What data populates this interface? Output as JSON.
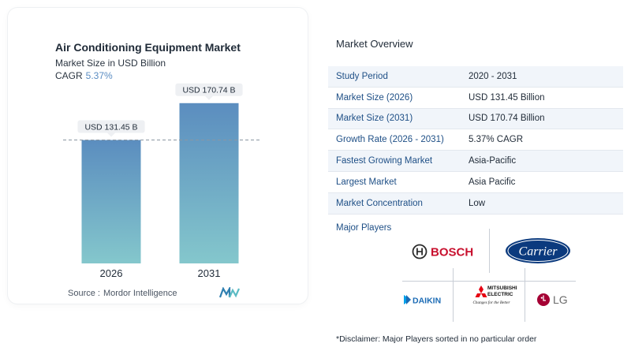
{
  "chart": {
    "title": "Air Conditioning Equipment Market",
    "subtitle": "Market Size in USD Billion",
    "cagr_label": "CAGR",
    "cagr_value": "5.37%",
    "source_label": "Source :",
    "source_value": "Mordor Intelligence"
  },
  "chart_data": {
    "type": "bar",
    "categories": [
      "2026",
      "2031"
    ],
    "values": [
      131.45,
      170.74
    ],
    "data_labels": [
      "USD 131.45 B",
      "USD 170.74 B"
    ],
    "title": "Air Conditioning Equipment Market",
    "subtitle": "Market Size in USD Billion",
    "ylim": [
      0,
      180
    ],
    "grid": false,
    "reference_line_value": 131.45,
    "colors": {
      "bar_top": "#5b8dbf",
      "bar_bottom": "#84c7cc",
      "ref_line": "#8a96a3"
    }
  },
  "overview": {
    "title": "Market Overview",
    "rows": [
      {
        "key": "Study Period",
        "value": "2020 - 2031"
      },
      {
        "key": "Market Size (2026)",
        "value": "USD 131.45 Billion"
      },
      {
        "key": "Market Size (2031)",
        "value": "USD 170.74 Billion"
      },
      {
        "key": "Growth Rate (2026 - 2031)",
        "value": "5.37% CAGR"
      },
      {
        "key": "Fastest Growing Market",
        "value": "Asia-Pacific"
      },
      {
        "key": "Largest Market",
        "value": "Asia Pacific"
      },
      {
        "key": "Market Concentration",
        "value": "Low"
      }
    ]
  },
  "players": {
    "title": "Major Players",
    "bosch": "BOSCH",
    "carrier": "Carrier",
    "daikin": "DAIKIN",
    "mitsubishi_1": "MITSUBISHI",
    "mitsubishi_2": "ELECTRIC",
    "mitsubishi_3": "Changes for the Better",
    "lg": "LG"
  },
  "disclaimer": "*Disclaimer: Major Players sorted in no particular order"
}
